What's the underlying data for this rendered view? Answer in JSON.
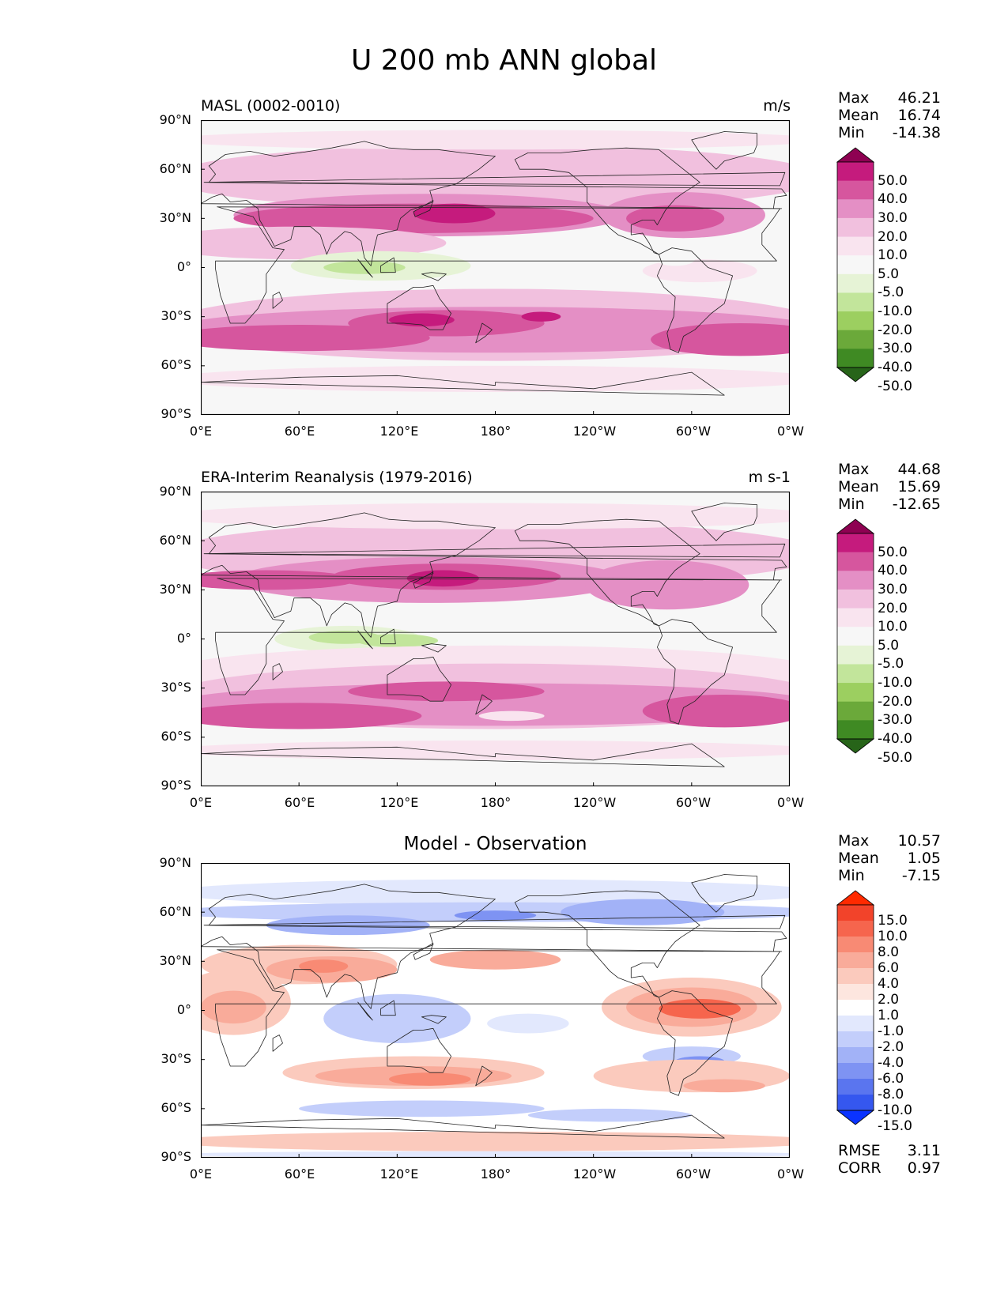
{
  "title": "U 200 mb ANN global",
  "lat_labels": [
    "90°N",
    "60°N",
    "30°N",
    "0°",
    "30°S",
    "60°S",
    "90°S"
  ],
  "lon_labels": [
    "0°E",
    "60°E",
    "120°E",
    "180°",
    "120°W",
    "60°W",
    "0°W"
  ],
  "panels": [
    {
      "left_title": "MASL (0002-0010)",
      "center_title": "",
      "right_title": "m/s",
      "stats": [
        {
          "label": "Max",
          "value": "46.21"
        },
        {
          "label": "Mean",
          "value": "16.74"
        },
        {
          "label": "Min",
          "value": "-14.38"
        }
      ],
      "colorbar": {
        "labels": [
          "50.0",
          "40.0",
          "30.0",
          "20.0",
          "10.0",
          "5.0",
          "-5.0",
          "-10.0",
          "-20.0",
          "-30.0",
          "-40.0",
          "-50.0"
        ],
        "colors": [
          "#8e0152",
          "#c51b7d",
          "#d6569e",
          "#e48fc5",
          "#f1c0de",
          "#f9e4ef",
          "#f7f7f7",
          "#e6f3d6",
          "#c2e59b",
          "#9ccf60",
          "#6ba93a",
          "#3f8a23",
          "#276419"
        ]
      },
      "footer": []
    },
    {
      "left_title": "ERA-Interim Reanalysis (1979-2016)",
      "center_title": "",
      "right_title": "m s-1",
      "stats": [
        {
          "label": "Max",
          "value": "44.68"
        },
        {
          "label": "Mean",
          "value": "15.69"
        },
        {
          "label": "Min",
          "value": "-12.65"
        }
      ],
      "colorbar": {
        "labels": [
          "50.0",
          "40.0",
          "30.0",
          "20.0",
          "10.0",
          "5.0",
          "-5.0",
          "-10.0",
          "-20.0",
          "-30.0",
          "-40.0",
          "-50.0"
        ],
        "colors": [
          "#8e0152",
          "#c51b7d",
          "#d6569e",
          "#e48fc5",
          "#f1c0de",
          "#f9e4ef",
          "#f7f7f7",
          "#e6f3d6",
          "#c2e59b",
          "#9ccf60",
          "#6ba93a",
          "#3f8a23",
          "#276419"
        ]
      },
      "footer": []
    },
    {
      "left_title": "",
      "center_title": "Model - Observation",
      "right_title": "",
      "stats": [
        {
          "label": "Max",
          "value": "10.57"
        },
        {
          "label": "Mean",
          "value": "1.05"
        },
        {
          "label": "Min",
          "value": "-7.15"
        }
      ],
      "colorbar": {
        "labels": [
          "15.0",
          "10.0",
          "8.0",
          "6.0",
          "4.0",
          "2.0",
          "1.0",
          "-1.0",
          "-2.0",
          "-4.0",
          "-6.0",
          "-8.0",
          "-10.0",
          "-15.0"
        ],
        "colors": [
          "#ff2a00",
          "#f2432a",
          "#f6654d",
          "#f88a74",
          "#f9ab9a",
          "#fbcabd",
          "#fde6df",
          "#ffffff",
          "#e2e8fd",
          "#c3cefb",
          "#a2b2f7",
          "#7e93f3",
          "#5a75ef",
          "#3557ef",
          "#0a33ff"
        ]
      },
      "footer": [
        {
          "label": "RMSE",
          "value": "3.11"
        },
        {
          "label": "CORR",
          "value": "0.97"
        }
      ]
    }
  ]
}
